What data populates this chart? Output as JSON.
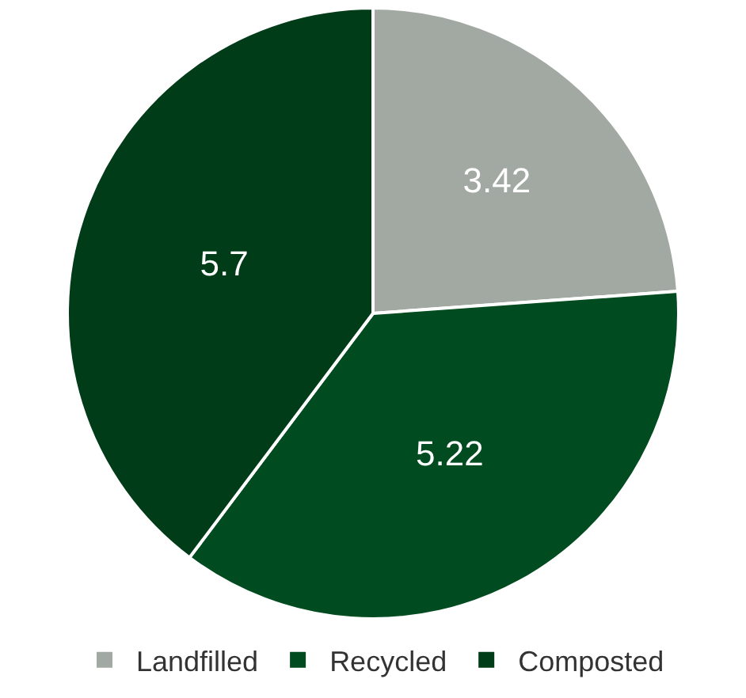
{
  "chart_data": {
    "type": "pie",
    "categories": [
      "Landfilled",
      "Recycled",
      "Composted"
    ],
    "values": [
      3.42,
      5.22,
      5.7
    ],
    "colors": [
      "#a2a9a2",
      "#004b1f",
      "#003c18"
    ],
    "data_labels": true,
    "legend": "bottom"
  }
}
